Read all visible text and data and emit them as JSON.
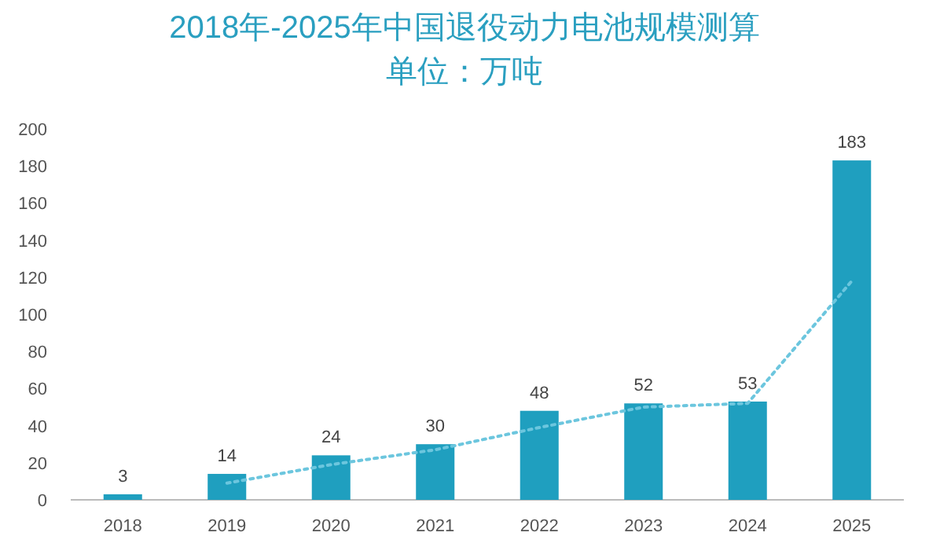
{
  "chart_data": {
    "type": "bar",
    "title": "2018年-2025年中国退役动力电池规模测算",
    "subtitle": "单位：万吨",
    "categories": [
      "2018",
      "2019",
      "2020",
      "2021",
      "2022",
      "2023",
      "2024",
      "2025"
    ],
    "series": [
      {
        "color": "#1f9fbf",
        "values": [
          3,
          14,
          24,
          30,
          48,
          52,
          53,
          183
        ],
        "value_labels": [
          "3",
          "14",
          "24",
          "30",
          "48",
          "52",
          "53",
          "183"
        ]
      },
      {
        "type": "line",
        "color": "#6cc6de",
        "line_style": "dotted",
        "values": [
          null,
          9,
          19,
          27,
          39,
          50,
          52,
          118
        ]
      }
    ],
    "ylim": [
      0,
      200
    ],
    "yticks": [
      0,
      20,
      40,
      60,
      80,
      100,
      120,
      140,
      160,
      180,
      200
    ],
    "grid": false
  }
}
